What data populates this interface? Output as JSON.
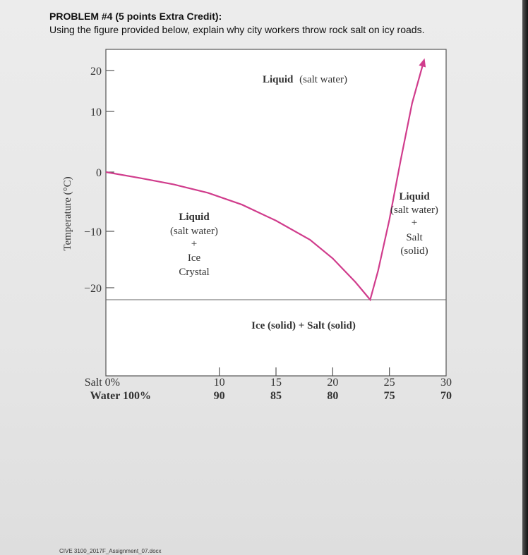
{
  "problem": {
    "heading": "PROBLEM #4 (5 points Extra Credit):",
    "question": "Using the figure provided below, explain why city workers throw rock salt on icy roads."
  },
  "footer": "CIVE 3100_2017F_Assignment_07.docx",
  "chart_data": {
    "type": "line",
    "title": "",
    "xlabel": "",
    "ylabel": "Temperature (°C)",
    "xlim": [
      0,
      30
    ],
    "ylim": [
      -30,
      23
    ],
    "x_ticks": [
      {
        "salt": "Salt  0%",
        "water": "Water  100%",
        "value": 0
      },
      {
        "salt": "10",
        "water": "90",
        "value": 10
      },
      {
        "salt": "15",
        "water": "85",
        "value": 15
      },
      {
        "salt": "20",
        "water": "80",
        "value": 20
      },
      {
        "salt": "25",
        "water": "75",
        "value": 25
      },
      {
        "salt": "30",
        "water": "70",
        "value": 30
      }
    ],
    "y_ticks": [
      {
        "label": "20",
        "value": 20
      },
      {
        "label": "10",
        "value": 10
      },
      {
        "label": "0",
        "value": 0
      },
      {
        "label": "−10",
        "value": -10
      },
      {
        "label": "−20",
        "value": -20
      }
    ],
    "series": [
      {
        "color": "#d03c8c",
        "x": [
          0,
          3,
          6,
          9,
          12,
          15,
          18,
          20,
          22,
          23.3,
          24,
          25,
          26,
          27,
          28
        ],
        "y": [
          0,
          -1,
          -2.1,
          -3.5,
          -5.5,
          -8.2,
          -11.5,
          -14.8,
          -19,
          -21.5,
          -17,
          -8,
          2,
          12,
          22
        ]
      }
    ],
    "eutectic_line": {
      "y": -21.5
    },
    "regions": {
      "liquid_top": {
        "bold": "Liquid",
        "rest": "(salt water)"
      },
      "liquid_ice": [
        "Liquid",
        "(salt water)",
        "+",
        "Ice",
        "Crystal"
      ],
      "liquid_salt": [
        "Liquid",
        "(salt water)",
        "+",
        "Salt",
        "(solid)"
      ],
      "solid": "Ice (solid) + Salt (solid)"
    }
  }
}
